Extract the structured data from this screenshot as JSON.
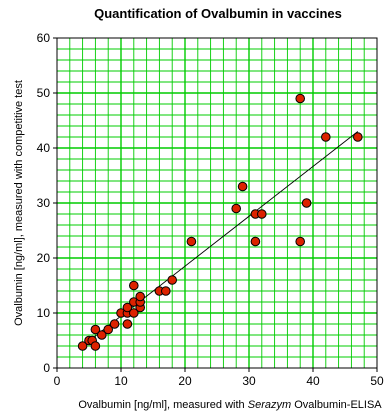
{
  "chart_data": {
    "type": "scatter",
    "title": "Quantification of Ovalbumin in vaccines",
    "xlabel": {
      "prefix": "Ovalbumin  [ng/ml], measured with ",
      "italic": "Serazym",
      "suffix": " Ovalbumin-ELISA"
    },
    "ylabel": "Ovalbumin [ng/ml], measured with competitive test",
    "xlim": [
      0,
      50
    ],
    "ylim": [
      0,
      60
    ],
    "xticks": [
      0,
      10,
      20,
      30,
      40,
      50
    ],
    "yticks": [
      0,
      10,
      20,
      30,
      40,
      50,
      60
    ],
    "grid": true,
    "grid_minor_step": 2,
    "grid_color": "#00cc00",
    "point_color": "#dd2200",
    "trendline": {
      "x": [
        4,
        47
      ],
      "y": [
        4,
        43
      ]
    },
    "points": [
      {
        "x": 4,
        "y": 4
      },
      {
        "x": 5,
        "y": 5
      },
      {
        "x": 5.5,
        "y": 5
      },
      {
        "x": 6,
        "y": 4
      },
      {
        "x": 6,
        "y": 7
      },
      {
        "x": 7,
        "y": 6
      },
      {
        "x": 8,
        "y": 7
      },
      {
        "x": 9,
        "y": 8
      },
      {
        "x": 10,
        "y": 10
      },
      {
        "x": 11,
        "y": 8
      },
      {
        "x": 11,
        "y": 10
      },
      {
        "x": 11,
        "y": 11
      },
      {
        "x": 12,
        "y": 10
      },
      {
        "x": 12,
        "y": 12
      },
      {
        "x": 12,
        "y": 15
      },
      {
        "x": 13,
        "y": 11
      },
      {
        "x": 13,
        "y": 12
      },
      {
        "x": 13,
        "y": 13
      },
      {
        "x": 16,
        "y": 14
      },
      {
        "x": 17,
        "y": 14
      },
      {
        "x": 18,
        "y": 16
      },
      {
        "x": 21,
        "y": 23
      },
      {
        "x": 28,
        "y": 29
      },
      {
        "x": 29,
        "y": 33
      },
      {
        "x": 31,
        "y": 23
      },
      {
        "x": 31,
        "y": 28
      },
      {
        "x": 32,
        "y": 28
      },
      {
        "x": 38,
        "y": 23
      },
      {
        "x": 38,
        "y": 49
      },
      {
        "x": 39,
        "y": 30
      },
      {
        "x": 42,
        "y": 42
      },
      {
        "x": 47,
        "y": 42
      }
    ]
  }
}
